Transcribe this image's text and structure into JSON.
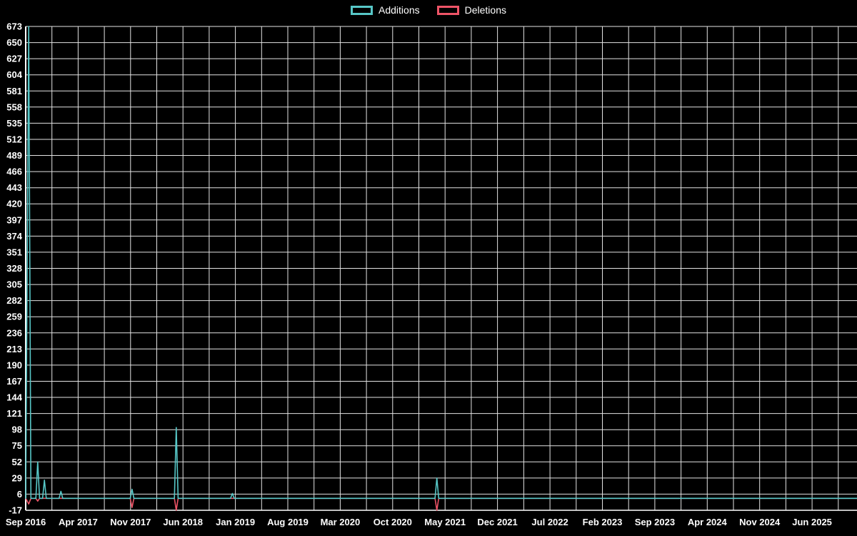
{
  "chart_data": {
    "type": "line",
    "title": "",
    "legend_position": "top-center",
    "background": "#000000",
    "grid": true,
    "grid_color": "#e3e3e3",
    "axis_color": "#ffffff",
    "text_color": "#ffffff",
    "ylim": [
      -17,
      673
    ],
    "y_tick_step": 23,
    "y_ticks": [
      673,
      650,
      627,
      604,
      581,
      558,
      535,
      512,
      489,
      466,
      443,
      420,
      397,
      374,
      351,
      328,
      305,
      282,
      259,
      236,
      213,
      190,
      167,
      144,
      121,
      98,
      75,
      52,
      29,
      6,
      -17
    ],
    "x_range_months": [
      0,
      111
    ],
    "x_grid_step_months": 3.5,
    "x_ticks": [
      {
        "month": 0,
        "label": "Sep 2016"
      },
      {
        "month": 7,
        "label": "Apr 2017"
      },
      {
        "month": 14,
        "label": "Nov 2017"
      },
      {
        "month": 21,
        "label": "Jun 2018"
      },
      {
        "month": 28,
        "label": "Jan 2019"
      },
      {
        "month": 35,
        "label": "Aug 2019"
      },
      {
        "month": 42,
        "label": "Mar 2020"
      },
      {
        "month": 49,
        "label": "Oct 2020"
      },
      {
        "month": 56,
        "label": "May 2021"
      },
      {
        "month": 63,
        "label": "Dec 2021"
      },
      {
        "month": 70,
        "label": "Jul 2022"
      },
      {
        "month": 77,
        "label": "Feb 2023"
      },
      {
        "month": 84,
        "label": "Sep 2023"
      },
      {
        "month": 91,
        "label": "Apr 2024"
      },
      {
        "month": 98,
        "label": "Nov 2024"
      },
      {
        "month": 105,
        "label": "Jun 2025"
      }
    ],
    "series": [
      {
        "name": "Additions",
        "color": "#57c7c7",
        "points": [
          [
            0,
            0
          ],
          [
            0.4,
            673
          ],
          [
            0.7,
            0
          ],
          [
            1.35,
            0
          ],
          [
            1.6,
            52
          ],
          [
            1.85,
            0
          ],
          [
            2.25,
            0
          ],
          [
            2.5,
            26
          ],
          [
            2.75,
            0
          ],
          [
            4.45,
            0
          ],
          [
            4.7,
            10
          ],
          [
            4.95,
            0
          ],
          [
            13.95,
            0
          ],
          [
            14.2,
            13
          ],
          [
            14.45,
            0
          ],
          [
            19.85,
            0
          ],
          [
            20.1,
            101
          ],
          [
            20.35,
            0
          ],
          [
            27.35,
            0
          ],
          [
            27.6,
            7
          ],
          [
            27.85,
            0
          ],
          [
            54.65,
            0
          ],
          [
            54.9,
            29
          ],
          [
            55.15,
            0
          ],
          [
            111,
            0
          ]
        ]
      },
      {
        "name": "Deletions",
        "color": "#ee5467",
        "points": [
          [
            0,
            0
          ],
          [
            0.4,
            -8
          ],
          [
            0.7,
            0
          ],
          [
            1.35,
            0
          ],
          [
            1.6,
            -4
          ],
          [
            1.85,
            0
          ],
          [
            13.95,
            0
          ],
          [
            14.2,
            -13
          ],
          [
            14.45,
            0
          ],
          [
            19.85,
            0
          ],
          [
            20.1,
            -17
          ],
          [
            20.35,
            0
          ],
          [
            54.65,
            0
          ],
          [
            54.9,
            -17
          ],
          [
            55.15,
            0
          ],
          [
            111,
            0
          ]
        ]
      }
    ]
  }
}
